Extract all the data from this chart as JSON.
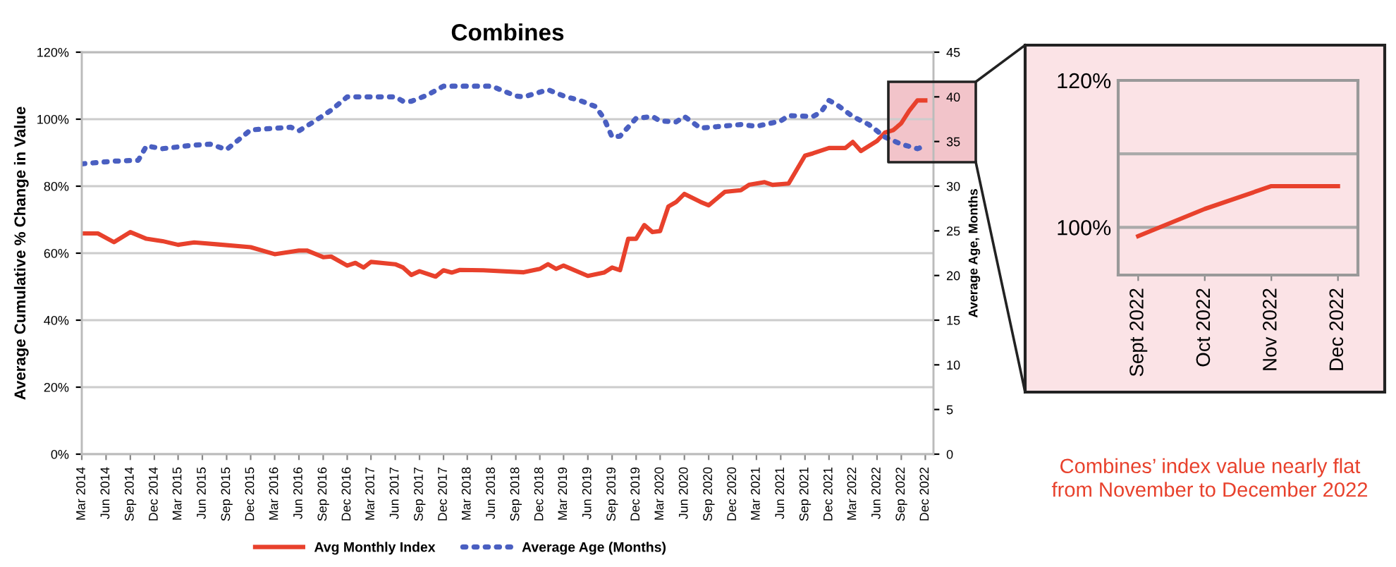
{
  "chart_data": [
    {
      "type": "line",
      "title": "Combines",
      "ylabel": "Average Cumulative % Change in Value",
      "y2label": "Average Age, Months",
      "xlim": [
        "2014-03",
        "2023-01"
      ],
      "xticks": [
        {
          "value": "2014-03",
          "label": "Mar 2014"
        },
        {
          "value": "2014-06",
          "label": "Jun 2014"
        },
        {
          "value": "2014-09",
          "label": "Sep 2014"
        },
        {
          "value": "2014-12",
          "label": "Dec 2014"
        },
        {
          "value": "2015-03",
          "label": "Mar 2015"
        },
        {
          "value": "2015-06",
          "label": "Jun 2015"
        },
        {
          "value": "2015-09",
          "label": "Sep 2015"
        },
        {
          "value": "2015-12",
          "label": "Dec 2015"
        },
        {
          "value": "2016-03",
          "label": "Mar 2016"
        },
        {
          "value": "2016-06",
          "label": "Jun 2016"
        },
        {
          "value": "2016-09",
          "label": "Sep 2016"
        },
        {
          "value": "2016-12",
          "label": "Dec 2016"
        },
        {
          "value": "2017-03",
          "label": "Mar 2017"
        },
        {
          "value": "2017-06",
          "label": "Jun 2017"
        },
        {
          "value": "2017-09",
          "label": "Sep 2017"
        },
        {
          "value": "2017-12",
          "label": "Dec 2017"
        },
        {
          "value": "2018-03",
          "label": "Mar 2018"
        },
        {
          "value": "2018-06",
          "label": "Jun 2018"
        },
        {
          "value": "2018-09",
          "label": "Sep 2018"
        },
        {
          "value": "2018-12",
          "label": "Dec 2018"
        },
        {
          "value": "2019-03",
          "label": "Mar 2019"
        },
        {
          "value": "2019-06",
          "label": "Jun 2019"
        },
        {
          "value": "2019-09",
          "label": "Sep 2019"
        },
        {
          "value": "2019-12",
          "label": "Dec 2019"
        },
        {
          "value": "2020-03",
          "label": "Mar 2020"
        },
        {
          "value": "2020-06",
          "label": "Jun 2020"
        },
        {
          "value": "2020-09",
          "label": "Sep 2020"
        },
        {
          "value": "2020-12",
          "label": "Dec 2020"
        },
        {
          "value": "2021-03",
          "label": "Mar 2021"
        },
        {
          "value": "2021-06",
          "label": "Jun 2021"
        },
        {
          "value": "2021-09",
          "label": "Sep 2021"
        },
        {
          "value": "2021-12",
          "label": "Dec 2021"
        },
        {
          "value": "2022-03",
          "label": "Mar 2022"
        },
        {
          "value": "2022-06",
          "label": "Jun 2022"
        },
        {
          "value": "2022-09",
          "label": "Sep 2022"
        },
        {
          "value": "2022-12",
          "label": "Dec 2022"
        }
      ],
      "ylim": [
        0,
        120
      ],
      "yticks": [
        {
          "value": 0,
          "label": "0%"
        },
        {
          "value": 20,
          "label": "20%"
        },
        {
          "value": 40,
          "label": "40%"
        },
        {
          "value": 60,
          "label": "60%"
        },
        {
          "value": 80,
          "label": "80%"
        },
        {
          "value": 100,
          "label": "100%"
        },
        {
          "value": 120,
          "label": "120%"
        }
      ],
      "y2lim": [
        0,
        45
      ],
      "y2ticks": [
        0,
        5,
        10,
        15,
        20,
        25,
        30,
        35,
        40,
        45
      ],
      "grid": "y",
      "legend": "bottom",
      "series": [
        {
          "name": "Avg Monthly Index",
          "color": "#e8412c",
          "line_style": "solid",
          "x": [
            "2014-03",
            "2014-05",
            "2014-07",
            "2014-09",
            "2014-11",
            "2015-01",
            "2015-03",
            "2015-05",
            "2015-08",
            "2015-12",
            "2016-03",
            "2016-06",
            "2016-07",
            "2016-09",
            "2016-10",
            "2016-12",
            "2017-01",
            "2017-02",
            "2017-03",
            "2017-06",
            "2017-07",
            "2017-08",
            "2017-09",
            "2017-11",
            "2017-12",
            "2018-01",
            "2018-02",
            "2018-05",
            "2018-10",
            "2018-12",
            "2019-01",
            "2019-02",
            "2019-03",
            "2019-06",
            "2019-08",
            "2019-09",
            "2019-10",
            "2019-11",
            "2019-12",
            "2020-01",
            "2020-02",
            "2020-03",
            "2020-04",
            "2020-05",
            "2020-06",
            "2020-08",
            "2020-09",
            "2020-11",
            "2021-01",
            "2021-02",
            "2021-04",
            "2021-05",
            "2021-07",
            "2021-09",
            "2021-10",
            "2021-12",
            "2022-02",
            "2022-03",
            "2022-04",
            "2022-06",
            "2022-07",
            "2022-08",
            "2022-09",
            "2022-10",
            "2022-11",
            "2022-12"
          ],
          "values": [
            65.9,
            65.9,
            63.3,
            66.3,
            64.3,
            63.6,
            62.5,
            63.2,
            62.6,
            61.8,
            59.7,
            60.8,
            60.8,
            58.8,
            59.0,
            56.3,
            57.1,
            55.7,
            57.4,
            56.7,
            55.7,
            53.5,
            54.6,
            53.0,
            54.9,
            54.2,
            55.0,
            54.9,
            54.3,
            55.3,
            56.7,
            55.3,
            56.3,
            53.2,
            54.2,
            55.7,
            54.9,
            64.3,
            64.3,
            68.4,
            66.3,
            66.6,
            73.9,
            75.3,
            77.7,
            75.3,
            74.3,
            78.3,
            78.8,
            80.4,
            81.2,
            80.4,
            80.8,
            89.1,
            89.8,
            91.4,
            91.4,
            93.2,
            90.5,
            93.5,
            96.0,
            96.7,
            98.8,
            102.5,
            105.6,
            105.6
          ]
        },
        {
          "name": "Average Age (Months)",
          "color": "#4a5fc1",
          "line_style": "dotted",
          "axis": "y2",
          "x": [
            "2014-03",
            "2014-07",
            "2014-10",
            "2014-11",
            "2015-01",
            "2015-05",
            "2015-07",
            "2015-09",
            "2015-12",
            "2016-05",
            "2016-06",
            "2016-08",
            "2016-10",
            "2016-12",
            "2017-06",
            "2017-07",
            "2017-08",
            "2017-10",
            "2017-12",
            "2018-06",
            "2018-09",
            "2018-10",
            "2019-01",
            "2019-03",
            "2019-05",
            "2019-07",
            "2019-08",
            "2019-09",
            "2019-10",
            "2019-12",
            "2020-02",
            "2020-03",
            "2020-05",
            "2020-06",
            "2020-08",
            "2021-01",
            "2021-03",
            "2021-06",
            "2021-07",
            "2021-10",
            "2021-11",
            "2021-12",
            "2022-01",
            "2022-03",
            "2022-05",
            "2022-07",
            "2022-09",
            "2022-11",
            "2022-12"
          ],
          "values": [
            32.5,
            32.8,
            32.9,
            34.5,
            34.2,
            34.6,
            34.7,
            34.1,
            36.3,
            36.6,
            36.2,
            37.3,
            38.5,
            40.0,
            40.0,
            39.5,
            39.5,
            40.2,
            41.2,
            41.2,
            40.1,
            40.0,
            40.8,
            40.1,
            39.6,
            38.9,
            37.6,
            35.5,
            35.6,
            37.6,
            37.8,
            37.3,
            37.2,
            37.8,
            36.5,
            36.9,
            36.7,
            37.3,
            37.9,
            37.8,
            38.3,
            39.6,
            39.1,
            37.8,
            36.9,
            35.5,
            34.7,
            34.2,
            34.5
          ]
        }
      ]
    },
    {
      "type": "line",
      "categories": [
        "Sept 2022",
        "Oct 2022",
        "Nov 2022",
        "Dec 2022"
      ],
      "ylim": [
        93.5,
        120
      ],
      "yticks": [
        {
          "value": 100,
          "label": "100%"
        },
        {
          "value": 110,
          "label": null
        },
        {
          "value": 120,
          "label": "120%"
        }
      ],
      "grid": "y",
      "series": [
        {
          "color": "#e8412c",
          "line_style": "solid",
          "values": [
            98.8,
            102.5,
            105.6,
            105.6
          ]
        }
      ],
      "annotations": [
        "Combines’ index value nearly flat\nfrom November to December 2022"
      ]
    }
  ]
}
